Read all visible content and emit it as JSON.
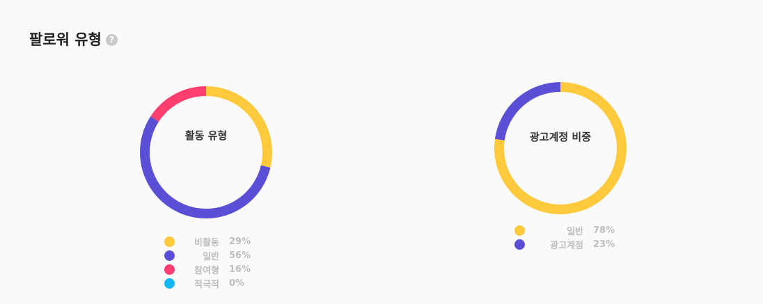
{
  "header": {
    "title": "팔로워 유형",
    "help_glyph": "?"
  },
  "chart_data": [
    {
      "type": "pie",
      "title": "활동 유형",
      "categories": [
        "비활동",
        "일반",
        "참여형",
        "적극적"
      ],
      "values": [
        29,
        56,
        16,
        0
      ],
      "labels": [
        "29%",
        "56%",
        "16%",
        "0%"
      ],
      "colors": [
        "#ffc93c",
        "#5b4fd6",
        "#ff3d6e",
        "#12b6f5"
      ],
      "legend": "bottom"
    },
    {
      "type": "pie",
      "title": "광고계정 비중",
      "categories": [
        "일반",
        "광고계정"
      ],
      "values": [
        78,
        23
      ],
      "labels": [
        "78%",
        "23%"
      ],
      "colors": [
        "#ffc93c",
        "#5b4fd6"
      ],
      "legend": "bottom"
    }
  ]
}
